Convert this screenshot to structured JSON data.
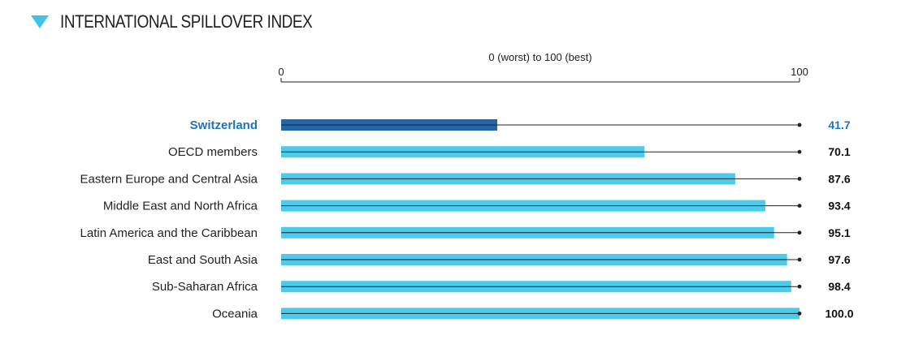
{
  "header": {
    "title": "INTERNATIONAL SPILLOVER INDEX",
    "icon": "triangle-down-icon",
    "accent_color": "#3ec3e6"
  },
  "chart_data": {
    "type": "bar",
    "orientation": "horizontal",
    "title": "INTERNATIONAL SPILLOVER INDEX",
    "xlabel": "0 (worst) to 100 (best)",
    "xlim": [
      0,
      100
    ],
    "tick_labels": [
      "0",
      "100"
    ],
    "categories": [
      "Switzerland",
      "OECD members",
      "Eastern Europe and Central Asia",
      "Middle East and North Africa",
      "Latin America and the Caribbean",
      "East and South Asia",
      "Sub-Saharan Africa",
      "Oceania"
    ],
    "values": [
      41.7,
      70.1,
      87.6,
      93.4,
      95.1,
      97.6,
      98.4,
      100.0
    ],
    "value_labels": [
      "41.7",
      "70.1",
      "87.6",
      "93.4",
      "95.1",
      "97.6",
      "98.4",
      "100.0"
    ],
    "highlight": "Switzerland",
    "colors": {
      "bar": "#4dcbec",
      "highlight_bar": "#2068ac",
      "highlight_text": "#1f73b8",
      "line": "#222222"
    },
    "grid": false
  }
}
